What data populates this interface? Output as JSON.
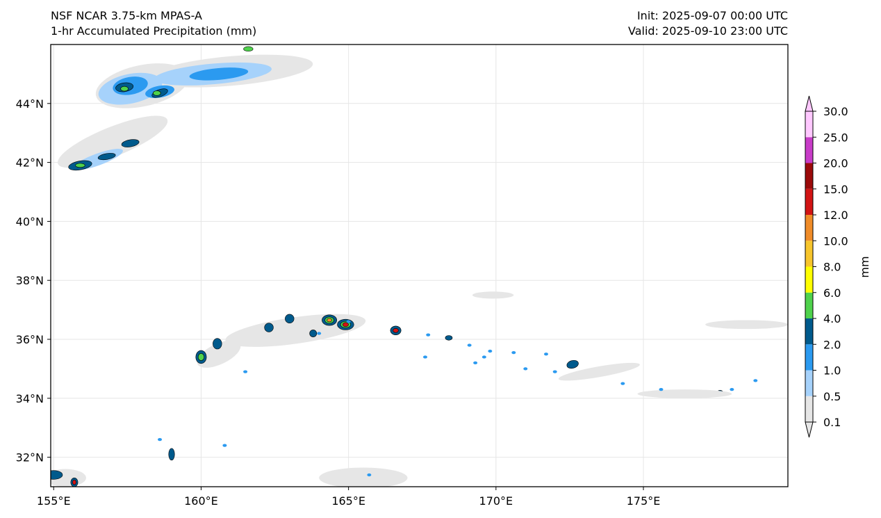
{
  "header": {
    "model": "NSF NCAR 3.75-km MPAS-A",
    "field": "1-hr Accumulated Precipitation (mm)",
    "init": "Init: 2025-09-07 00:00 UTC",
    "valid": "Valid: 2025-09-10 23:00 UTC"
  },
  "axes": {
    "lat_labels": [
      "44°N",
      "42°N",
      "40°N",
      "38°N",
      "36°N",
      "34°N",
      "32°N"
    ],
    "lat_values": [
      44,
      42,
      40,
      38,
      36,
      34,
      32
    ],
    "lon_labels": [
      "155°E",
      "160°E",
      "165°E",
      "170°E",
      "175°E"
    ],
    "lon_values": [
      155,
      160,
      165,
      170,
      175
    ],
    "lat_range": [
      31.0,
      46.0
    ],
    "lon_range": [
      154.9,
      179.9
    ]
  },
  "colorbar": {
    "unit_label": "mm",
    "levels": [
      "0.1",
      "0.5",
      "1.0",
      "2.0",
      "4.0",
      "6.0",
      "8.0",
      "10.0",
      "12.0",
      "15.0",
      "20.0",
      "25.0",
      "30.0"
    ],
    "colors": [
      "#e6e6e6",
      "#a6d2fb",
      "#2b9af0",
      "#005a8c",
      "#4fd24c",
      "#ffff00",
      "#f7c52c",
      "#f08c28",
      "#d21414",
      "#9b0a0a",
      "#c83cc8",
      "#ffc8ff"
    ]
  },
  "precip_cells": [
    {
      "lon": 158.0,
      "lat": 44.6,
      "rx": 1.6,
      "ry": 0.7,
      "rot": -12,
      "level": 0
    },
    {
      "lon": 161.0,
      "lat": 45.1,
      "rx": 2.8,
      "ry": 0.5,
      "rot": -5,
      "level": 0
    },
    {
      "lon": 157.0,
      "lat": 42.7,
      "rx": 2.0,
      "ry": 0.5,
      "rot": -22,
      "level": 0
    },
    {
      "lon": 157.6,
      "lat": 44.5,
      "rx": 1.1,
      "ry": 0.5,
      "rot": -12,
      "level": 1
    },
    {
      "lon": 160.4,
      "lat": 45.0,
      "rx": 2.0,
      "ry": 0.35,
      "rot": -5,
      "level": 1
    },
    {
      "lon": 157.6,
      "lat": 44.6,
      "rx": 0.6,
      "ry": 0.3,
      "rot": -10,
      "level": 2
    },
    {
      "lon": 158.6,
      "lat": 44.4,
      "rx": 0.5,
      "ry": 0.2,
      "rot": -10,
      "level": 2
    },
    {
      "lon": 160.6,
      "lat": 45.0,
      "rx": 1.0,
      "ry": 0.2,
      "rot": -5,
      "level": 2
    },
    {
      "lon": 157.4,
      "lat": 44.55,
      "rx": 0.3,
      "ry": 0.15,
      "rot": -8,
      "level": 3
    },
    {
      "lon": 158.6,
      "lat": 44.35,
      "rx": 0.28,
      "ry": 0.12,
      "rot": -20,
      "level": 3
    },
    {
      "lon": 157.4,
      "lat": 44.5,
      "rx": 0.13,
      "ry": 0.08,
      "rot": 0,
      "level": 4
    },
    {
      "lon": 158.5,
      "lat": 44.35,
      "rx": 0.13,
      "ry": 0.08,
      "rot": 0,
      "level": 4
    },
    {
      "lon": 161.6,
      "lat": 45.85,
      "rx": 0.16,
      "ry": 0.08,
      "rot": 0,
      "level": 4
    },
    {
      "lon": 156.5,
      "lat": 42.1,
      "rx": 0.9,
      "ry": 0.2,
      "rot": -20,
      "level": 1
    },
    {
      "lon": 155.9,
      "lat": 41.9,
      "rx": 0.4,
      "ry": 0.15,
      "rot": -10,
      "level": 3
    },
    {
      "lon": 155.9,
      "lat": 41.9,
      "rx": 0.16,
      "ry": 0.07,
      "rot": 0,
      "level": 4
    },
    {
      "lon": 157.6,
      "lat": 42.65,
      "rx": 0.3,
      "ry": 0.12,
      "rot": -10,
      "level": 3
    },
    {
      "lon": 156.8,
      "lat": 42.2,
      "rx": 0.3,
      "ry": 0.1,
      "rot": -10,
      "level": 3
    },
    {
      "lon": 163.2,
      "lat": 36.3,
      "rx": 2.4,
      "ry": 0.45,
      "rot": -8,
      "level": 0
    },
    {
      "lon": 160.6,
      "lat": 35.5,
      "rx": 0.8,
      "ry": 0.35,
      "rot": -25,
      "level": 0
    },
    {
      "lon": 160.0,
      "lat": 35.4,
      "rx": 0.18,
      "ry": 0.22,
      "rot": 0,
      "level": 3
    },
    {
      "lon": 160.0,
      "lat": 35.4,
      "rx": 0.1,
      "ry": 0.12,
      "rot": 0,
      "level": 4
    },
    {
      "lon": 160.55,
      "lat": 35.85,
      "rx": 0.15,
      "ry": 0.18,
      "rot": 0,
      "level": 3
    },
    {
      "lon": 162.3,
      "lat": 36.4,
      "rx": 0.15,
      "ry": 0.15,
      "rot": 0,
      "level": 3
    },
    {
      "lon": 163.0,
      "lat": 36.7,
      "rx": 0.15,
      "ry": 0.15,
      "rot": 0,
      "level": 3
    },
    {
      "lon": 164.35,
      "lat": 36.65,
      "rx": 0.25,
      "ry": 0.18,
      "rot": 0,
      "level": 3
    },
    {
      "lon": 164.35,
      "lat": 36.65,
      "rx": 0.15,
      "ry": 0.11,
      "rot": 0,
      "level": 4
    },
    {
      "lon": 164.35,
      "lat": 36.65,
      "rx": 0.08,
      "ry": 0.06,
      "rot": 0,
      "level": 7
    },
    {
      "lon": 164.9,
      "lat": 36.5,
      "rx": 0.28,
      "ry": 0.18,
      "rot": 0,
      "level": 3
    },
    {
      "lon": 164.9,
      "lat": 36.5,
      "rx": 0.17,
      "ry": 0.11,
      "rot": 0,
      "level": 4
    },
    {
      "lon": 164.9,
      "lat": 36.5,
      "rx": 0.1,
      "ry": 0.07,
      "rot": 0,
      "level": 8
    },
    {
      "lon": 166.6,
      "lat": 36.3,
      "rx": 0.18,
      "ry": 0.15,
      "rot": 0,
      "level": 3
    },
    {
      "lon": 166.6,
      "lat": 36.3,
      "rx": 0.09,
      "ry": 0.07,
      "rot": 0,
      "level": 8
    },
    {
      "lon": 163.8,
      "lat": 36.2,
      "rx": 0.12,
      "ry": 0.12,
      "rot": 0,
      "level": 3
    },
    {
      "lon": 168.4,
      "lat": 36.05,
      "rx": 0.12,
      "ry": 0.08,
      "rot": 0,
      "level": 3
    },
    {
      "lon": 172.6,
      "lat": 35.15,
      "rx": 0.2,
      "ry": 0.13,
      "rot": -15,
      "level": 3
    },
    {
      "lon": 173.5,
      "lat": 34.9,
      "rx": 0.15,
      "ry": 0.08,
      "rot": 0,
      "level": 3
    },
    {
      "lon": 176.1,
      "lat": 34.1,
      "rx": 0.12,
      "ry": 0.07,
      "rot": 0,
      "level": 3
    },
    {
      "lon": 177.6,
      "lat": 34.2,
      "rx": 0.1,
      "ry": 0.07,
      "rot": 0,
      "level": 3
    },
    {
      "lon": 173.5,
      "lat": 34.9,
      "rx": 1.4,
      "ry": 0.18,
      "rot": -10,
      "level": 0
    },
    {
      "lon": 176.4,
      "lat": 34.15,
      "rx": 1.6,
      "ry": 0.15,
      "rot": 0,
      "level": 0
    },
    {
      "lon": 178.5,
      "lat": 36.5,
      "rx": 1.4,
      "ry": 0.15,
      "rot": 0,
      "level": 0
    },
    {
      "lon": 155.4,
      "lat": 31.3,
      "rx": 0.7,
      "ry": 0.3,
      "rot": 0,
      "level": 0
    },
    {
      "lon": 155.0,
      "lat": 31.4,
      "rx": 0.3,
      "ry": 0.15,
      "rot": 0,
      "level": 3
    },
    {
      "lon": 155.7,
      "lat": 31.15,
      "rx": 0.12,
      "ry": 0.15,
      "rot": 0,
      "level": 3
    },
    {
      "lon": 155.7,
      "lat": 31.15,
      "rx": 0.06,
      "ry": 0.08,
      "rot": 0,
      "level": 8
    },
    {
      "lon": 164.3,
      "lat": 31.3,
      "rx": 0.12,
      "ry": 0.12,
      "rot": 0,
      "level": 3
    },
    {
      "lon": 164.9,
      "lat": 31.25,
      "rx": 0.12,
      "ry": 0.12,
      "rot": 0,
      "level": 3
    },
    {
      "lon": 165.5,
      "lat": 31.3,
      "rx": 1.5,
      "ry": 0.35,
      "rot": 0,
      "level": 0
    },
    {
      "lon": 159.0,
      "lat": 32.1,
      "rx": 0.1,
      "ry": 0.2,
      "rot": 0,
      "level": 3
    },
    {
      "lon": 169.9,
      "lat": 37.5,
      "rx": 0.7,
      "ry": 0.12,
      "rot": 0,
      "level": 0
    }
  ],
  "scattered_cells": {
    "lons": [
      167.7,
      169.1,
      169.3,
      169.8,
      170.6,
      171.0,
      171.7,
      169.6,
      172.0,
      174.3,
      175.6,
      178.8,
      165.7,
      160.8,
      158.6,
      161.5,
      164.0,
      165.0,
      167.6,
      178.0
    ],
    "lats": [
      36.15,
      35.8,
      35.2,
      35.6,
      35.55,
      35.0,
      35.5,
      35.4,
      34.9,
      34.5,
      34.3,
      34.6,
      31.4,
      32.4,
      32.6,
      34.9,
      36.2,
      36.6,
      35.4,
      34.3
    ],
    "level": 2
  }
}
